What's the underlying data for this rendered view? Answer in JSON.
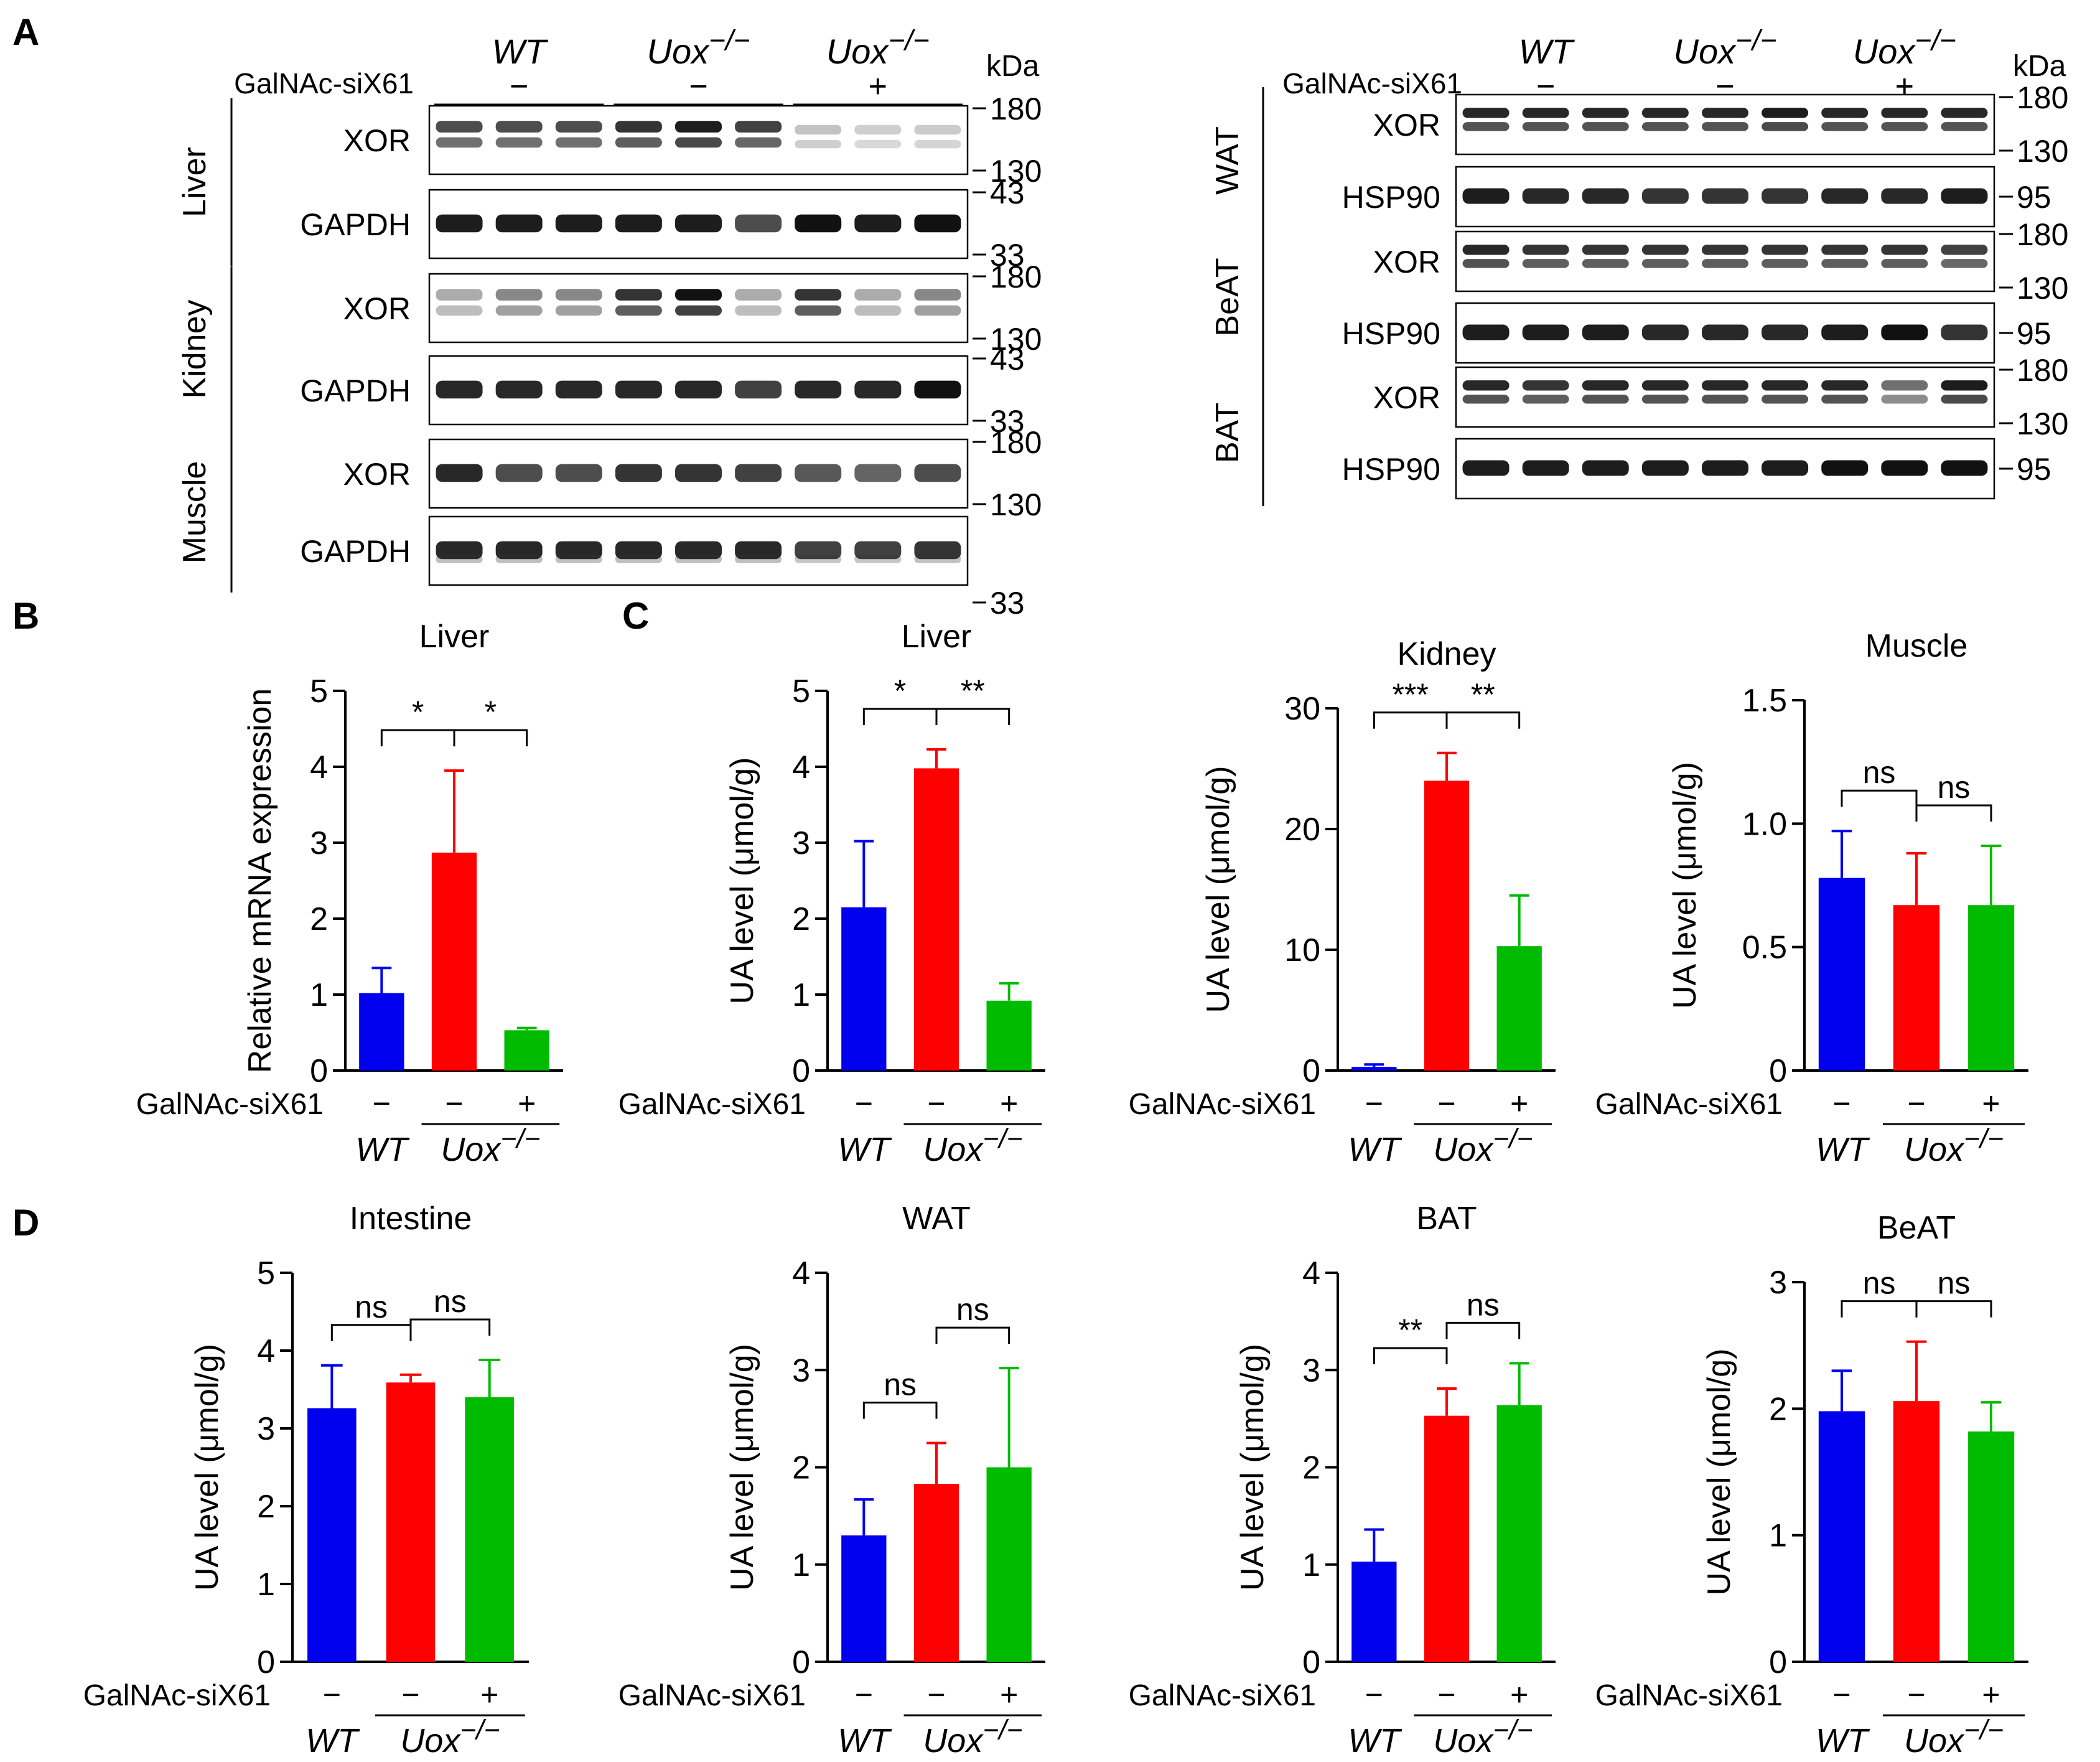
{
  "panel_labels": {
    "A": "A",
    "B": "B",
    "C": "C",
    "D": "D"
  },
  "colors": {
    "wt": "#0000ee",
    "uox": "#ff0000",
    "uox_si": "#00bb00",
    "axis": "#000000"
  },
  "treatment_label": "GalNAc-siX61",
  "genotypes": {
    "wt": "WT",
    "uox_base": "Uox",
    "uox_sup": "−/−"
  },
  "signs": {
    "minus": "−",
    "plus": "+"
  },
  "western": {
    "kda_label": "kDa",
    "left": {
      "tissues": [
        {
          "tissue": "Liver",
          "rows": [
            {
              "protein": "XOR",
              "markers": [
                "180",
                "130"
              ],
              "pattern": [
                2,
                2,
                2,
                2,
                2,
                2,
                3,
                3,
                3
              ],
              "intensity": [
                0.75,
                0.75,
                0.75,
                0.85,
                0.95,
                0.8,
                0.25,
                0.2,
                0.22
              ]
            },
            {
              "protein": "GAPDH",
              "markers": [
                "43",
                "33"
              ],
              "pattern": [
                1,
                1,
                1,
                1,
                1,
                1,
                1,
                1,
                1
              ],
              "intensity": [
                0.95,
                0.95,
                0.95,
                0.95,
                0.95,
                0.75,
                1,
                0.95,
                1
              ]
            }
          ]
        },
        {
          "tissue": "Kidney",
          "rows": [
            {
              "protein": "XOR",
              "markers": [
                "180",
                "130"
              ],
              "pattern": [
                2,
                2,
                2,
                2,
                2,
                2,
                2,
                2,
                2
              ],
              "intensity": [
                0.35,
                0.5,
                0.5,
                0.85,
                1,
                0.35,
                0.85,
                0.35,
                0.5
              ]
            },
            {
              "protein": "GAPDH",
              "markers": [
                "43",
                "33"
              ],
              "pattern": [
                1,
                1,
                1,
                1,
                1,
                1,
                1,
                1,
                1
              ],
              "intensity": [
                0.9,
                0.9,
                0.9,
                0.9,
                0.9,
                0.8,
                0.9,
                0.9,
                1
              ]
            }
          ]
        },
        {
          "tissue": "Muscle",
          "rows": [
            {
              "protein": "XOR",
              "markers": [
                "180",
                "130"
              ],
              "pattern": [
                1,
                1,
                1,
                1,
                1,
                1,
                1,
                1,
                1
              ],
              "intensity": [
                0.9,
                0.75,
                0.75,
                0.85,
                0.85,
                0.8,
                0.7,
                0.65,
                0.75
              ]
            },
            {
              "protein": "GAPDH",
              "markers": [
                "33"
              ],
              "pattern": [
                4,
                4,
                4,
                4,
                4,
                4,
                4,
                4,
                4
              ],
              "intensity": [
                0.9,
                0.9,
                0.9,
                0.9,
                0.9,
                0.9,
                0.8,
                0.8,
                0.85
              ]
            }
          ]
        }
      ]
    },
    "right": {
      "tissues": [
        {
          "tissue": "WAT",
          "rows": [
            {
              "protein": "XOR",
              "markers": [
                "180",
                "130"
              ],
              "pattern": [
                2,
                2,
                2,
                2,
                2,
                2,
                2,
                2,
                2
              ],
              "intensity": [
                0.9,
                0.9,
                0.9,
                0.9,
                0.9,
                0.95,
                0.9,
                0.9,
                0.9
              ]
            },
            {
              "protein": "HSP90",
              "markers": [
                "95"
              ],
              "pattern": [
                1,
                1,
                1,
                1,
                1,
                1,
                1,
                1,
                1
              ],
              "intensity": [
                0.95,
                0.9,
                0.9,
                0.85,
                0.85,
                0.85,
                0.9,
                0.9,
                0.95
              ]
            }
          ]
        },
        {
          "tissue": "BeAT",
          "rows": [
            {
              "protein": "XOR",
              "markers": [
                "180",
                "130"
              ],
              "pattern": [
                2,
                2,
                2,
                2,
                2,
                2,
                2,
                2,
                2
              ],
              "intensity": [
                0.9,
                0.85,
                0.85,
                0.85,
                0.85,
                0.85,
                0.85,
                0.85,
                0.8
              ]
            },
            {
              "protein": "HSP90",
              "markers": [
                "95"
              ],
              "pattern": [
                1,
                1,
                1,
                1,
                1,
                1,
                1,
                1,
                1
              ],
              "intensity": [
                0.95,
                0.95,
                0.95,
                0.9,
                0.9,
                0.9,
                0.95,
                1,
                0.85
              ]
            }
          ]
        },
        {
          "tissue": "BAT",
          "rows": [
            {
              "protein": "XOR",
              "markers": [
                "180",
                "130"
              ],
              "pattern": [
                2,
                2,
                2,
                2,
                2,
                2,
                2,
                2,
                2
              ],
              "intensity": [
                0.9,
                0.85,
                0.9,
                0.9,
                0.9,
                0.9,
                0.9,
                0.6,
                0.95
              ]
            },
            {
              "protein": "HSP90",
              "markers": [
                "95"
              ],
              "pattern": [
                1,
                1,
                1,
                1,
                1,
                1,
                1,
                1,
                1
              ],
              "intensity": [
                0.95,
                0.95,
                0.95,
                0.95,
                0.95,
                0.95,
                1,
                1,
                1
              ]
            }
          ]
        }
      ]
    }
  },
  "chart_data": [
    {
      "id": "B-liver",
      "type": "bar",
      "title": "Liver",
      "ylabel": "Relative mRNA expression",
      "ylim": [
        0,
        5
      ],
      "yticks": [
        "0",
        "1",
        "2",
        "3",
        "4",
        "5"
      ],
      "categories": [
        "WT −",
        "Uox−/− −",
        "Uox−/− +"
      ],
      "values": [
        1.02,
        2.87,
        0.53
      ],
      "errors": [
        0.33,
        1.08,
        0.03
      ],
      "significance": [
        {
          "pair": [
            0,
            1
          ],
          "label": "*"
        },
        {
          "pair": [
            1,
            2
          ],
          "label": "*"
        }
      ]
    },
    {
      "id": "C-liver",
      "type": "bar",
      "title": "Liver",
      "ylabel": "UA level (μmol/g)",
      "ylim": [
        0,
        5
      ],
      "yticks": [
        "0",
        "1",
        "2",
        "3",
        "4",
        "5"
      ],
      "categories": [
        "WT −",
        "Uox−/− −",
        "Uox−/− +"
      ],
      "values": [
        2.15,
        3.98,
        0.92
      ],
      "errors": [
        0.87,
        0.25,
        0.23
      ],
      "significance": [
        {
          "pair": [
            0,
            1
          ],
          "label": "*"
        },
        {
          "pair": [
            1,
            2
          ],
          "label": "**"
        }
      ]
    },
    {
      "id": "C-kidney",
      "type": "bar",
      "title": "Kidney",
      "ylabel": "UA level (μmol/g)",
      "ylim": [
        0,
        30
      ],
      "yticks": [
        "0",
        "10",
        "20",
        "30"
      ],
      "categories": [
        "WT −",
        "Uox−/− −",
        "Uox−/− +"
      ],
      "values": [
        0.3,
        24.0,
        10.3
      ],
      "errors": [
        0.2,
        2.3,
        4.2
      ],
      "significance": [
        {
          "pair": [
            0,
            1
          ],
          "label": "***"
        },
        {
          "pair": [
            1,
            2
          ],
          "label": "**"
        }
      ]
    },
    {
      "id": "C-muscle",
      "type": "bar",
      "title": "Muscle",
      "ylabel": "UA level (μmol/g)",
      "ylim": [
        0,
        1.5
      ],
      "yticks": [
        "0",
        "0.5",
        "1.0",
        "1.5"
      ],
      "categories": [
        "WT −",
        "Uox−/− −",
        "Uox−/− +"
      ],
      "values": [
        0.78,
        0.67,
        0.67
      ],
      "errors": [
        0.19,
        0.21,
        0.24
      ],
      "significance": [
        {
          "pair": [
            0,
            1
          ],
          "label": "ns"
        },
        {
          "pair": [
            1,
            2
          ],
          "label": "ns"
        }
      ]
    },
    {
      "id": "D-intestine",
      "type": "bar",
      "title": "Intestine",
      "ylabel": "UA level (μmol/g)",
      "ylim": [
        0,
        5
      ],
      "yticks": [
        "0",
        "1",
        "2",
        "3",
        "4",
        "5"
      ],
      "categories": [
        "WT −",
        "Uox−/− −",
        "Uox−/− +"
      ],
      "values": [
        3.26,
        3.59,
        3.4
      ],
      "errors": [
        0.55,
        0.1,
        0.48
      ],
      "significance": [
        {
          "pair": [
            0,
            1
          ],
          "label": "ns"
        },
        {
          "pair": [
            1,
            2
          ],
          "label": "ns"
        }
      ]
    },
    {
      "id": "D-wat",
      "type": "bar",
      "title": "WAT",
      "ylabel": "UA level (μmol/g)",
      "ylim": [
        0,
        4
      ],
      "yticks": [
        "0",
        "1",
        "2",
        "3",
        "4"
      ],
      "categories": [
        "WT −",
        "Uox−/− −",
        "Uox−/− +"
      ],
      "values": [
        1.3,
        1.83,
        2.0
      ],
      "errors": [
        0.37,
        0.42,
        1.02
      ],
      "significance": [
        {
          "pair": [
            0,
            1
          ],
          "label": "ns"
        },
        {
          "pair": [
            1,
            2
          ],
          "label": "ns"
        }
      ]
    },
    {
      "id": "D-bat",
      "type": "bar",
      "title": "BAT",
      "ylabel": "UA level (μmol/g)",
      "ylim": [
        0,
        4
      ],
      "yticks": [
        "0",
        "1",
        "2",
        "3",
        "4"
      ],
      "categories": [
        "WT −",
        "Uox−/− −",
        "Uox−/− +"
      ],
      "values": [
        1.03,
        2.53,
        2.64
      ],
      "errors": [
        0.33,
        0.28,
        0.43
      ],
      "significance": [
        {
          "pair": [
            0,
            1
          ],
          "label": "**"
        },
        {
          "pair": [
            1,
            2
          ],
          "label": "ns"
        }
      ]
    },
    {
      "id": "D-beat",
      "type": "bar",
      "title": "BeAT",
      "ylabel": "UA level (μmol/g)",
      "ylim": [
        0,
        3
      ],
      "yticks": [
        "0",
        "1",
        "2",
        "3"
      ],
      "categories": [
        "WT −",
        "Uox−/− −",
        "Uox−/− +"
      ],
      "values": [
        1.98,
        2.06,
        1.82
      ],
      "errors": [
        0.32,
        0.47,
        0.23
      ],
      "significance": [
        {
          "pair": [
            0,
            1
          ],
          "label": "ns"
        },
        {
          "pair": [
            1,
            2
          ],
          "label": "ns"
        }
      ]
    }
  ]
}
